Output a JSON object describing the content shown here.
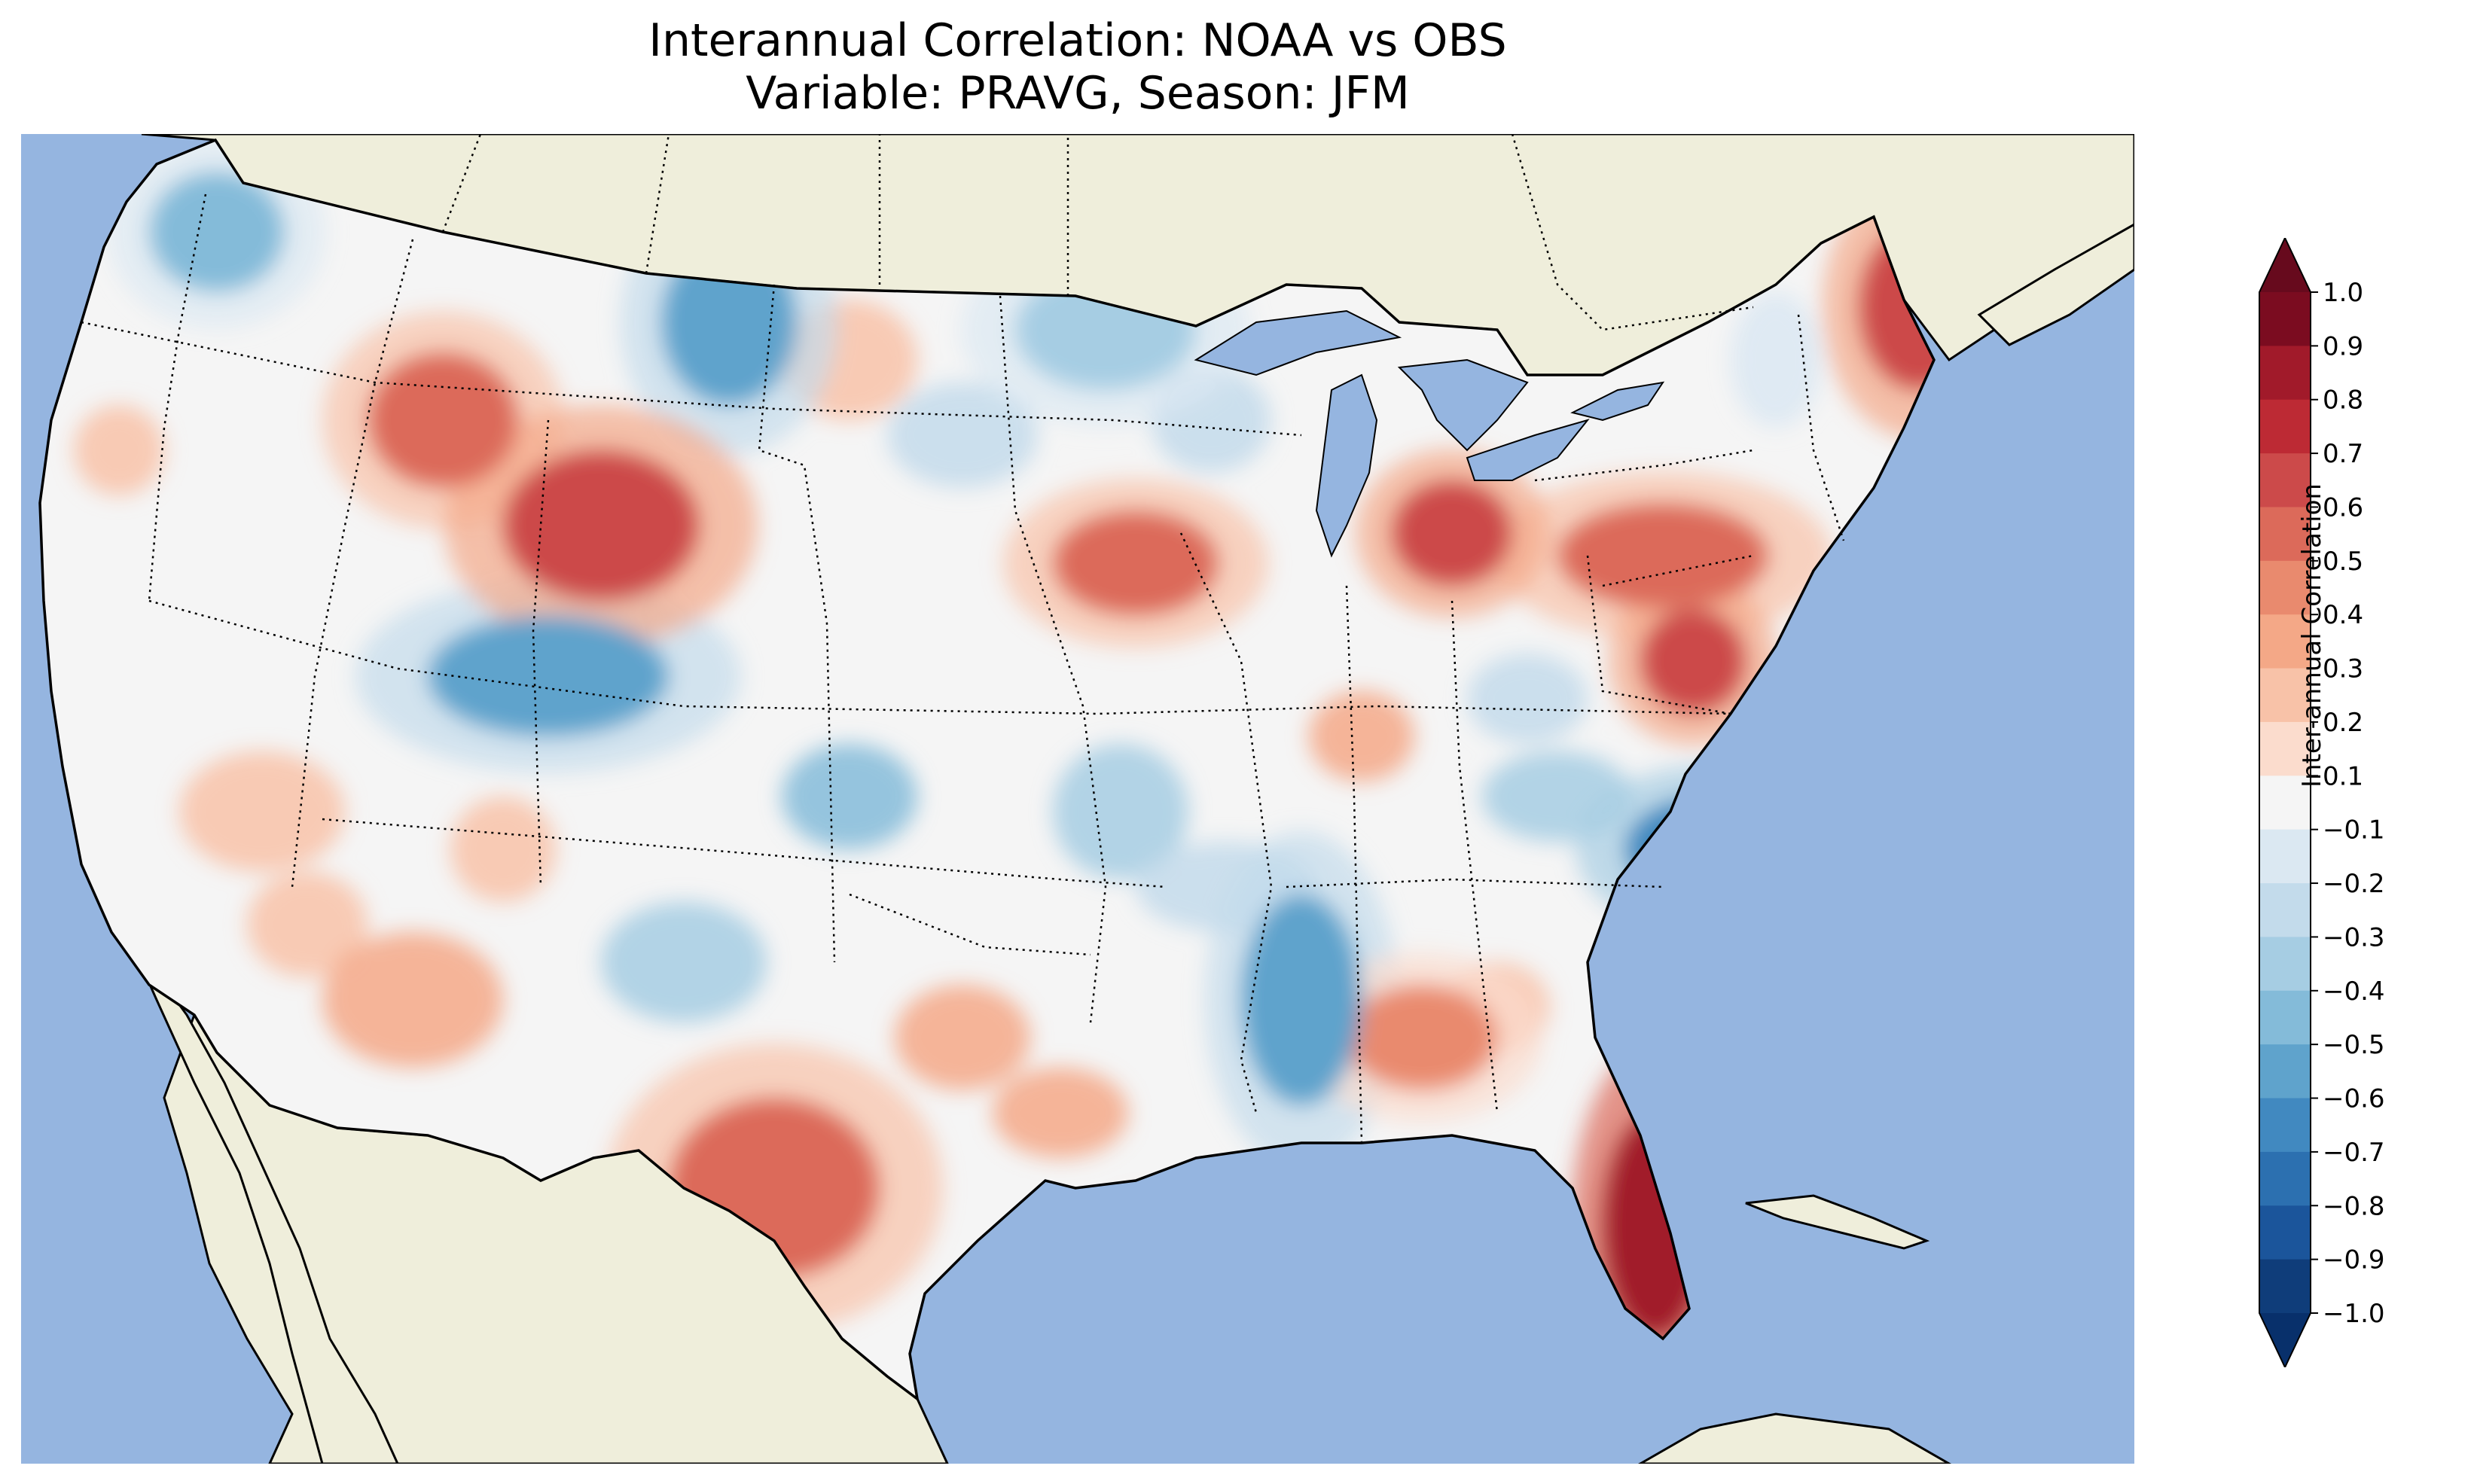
{
  "title": {
    "line1": "Interannual Correlation: NOAA vs OBS",
    "line2": "Variable: PRAVG, Season: JFM"
  },
  "colorbar": {
    "label": "Inter-annual Correlation",
    "ticks": [
      "1.0",
      "0.9",
      "0.8",
      "0.7",
      "0.6",
      "0.5",
      "0.4",
      "0.3",
      "0.2",
      "0.1",
      "−0.1",
      "−0.2",
      "−0.3",
      "−0.4",
      "−0.5",
      "−0.6",
      "−0.7",
      "−0.8",
      "−0.9",
      "−1.0"
    ],
    "colors_top_to_bottom": [
      "#7b0c20",
      "#a11a2a",
      "#bd2a34",
      "#cc4a4a",
      "#dc6a5a",
      "#e98a6e",
      "#f4a887",
      "#f8c2a8",
      "#fbdccd",
      "#f5f5f5",
      "#dbe8f2",
      "#c3dbeb",
      "#a6cde3",
      "#84bbd9",
      "#5fa3cc",
      "#4189c0",
      "#2c70b0",
      "#1b559b",
      "#0f3d7a"
    ],
    "extend_top_color": "#670a1d",
    "extend_bottom_color": "#08306b"
  },
  "map": {
    "ocean_color": "#95b5e0",
    "land_color": "#efeedb",
    "field_neutral_color": "#f5f5f5",
    "region": "Contiguous United States"
  },
  "chart_data": {
    "type": "heatmap",
    "title": "Interannual Correlation: NOAA vs OBS",
    "subtitle": "Variable: PRAVG, Season: JFM",
    "colorbar_label": "Inter-annual Correlation",
    "value_range": [
      -1.0,
      1.0
    ],
    "levels": [
      -1.0,
      -0.9,
      -0.8,
      -0.7,
      -0.6,
      -0.5,
      -0.4,
      -0.3,
      -0.2,
      -0.1,
      0.1,
      0.2,
      0.3,
      0.4,
      0.5,
      0.6,
      0.7,
      0.8,
      0.9,
      1.0
    ],
    "extend": "both",
    "colormap": "RdBu_r",
    "regions_estimated": [
      {
        "region": "Florida peninsula",
        "value": 0.8
      },
      {
        "region": "Maine",
        "value": 0.6
      },
      {
        "region": "Western Wyoming",
        "value": 0.6
      },
      {
        "region": "Southern Michigan",
        "value": 0.6
      },
      {
        "region": "Central Texas",
        "value": 0.5
      },
      {
        "region": "Northern Virginia",
        "value": 0.6
      },
      {
        "region": "Southwest Idaho",
        "value": 0.5
      },
      {
        "region": "Southern Iowa",
        "value": 0.5
      },
      {
        "region": "Northern Pennsylvania / NY",
        "value": 0.5
      },
      {
        "region": "Northern Alabama",
        "value": 0.4
      },
      {
        "region": "Northeast Montana",
        "value": -0.5
      },
      {
        "region": "Western Colorado / Utah",
        "value": -0.5
      },
      {
        "region": "Eastern North Carolina",
        "value": -0.6
      },
      {
        "region": "Eastern Arkansas / Mississippi",
        "value": -0.5
      },
      {
        "region": "Western Washington",
        "value": -0.4
      },
      {
        "region": "Northern Minnesota",
        "value": -0.3
      }
    ]
  }
}
